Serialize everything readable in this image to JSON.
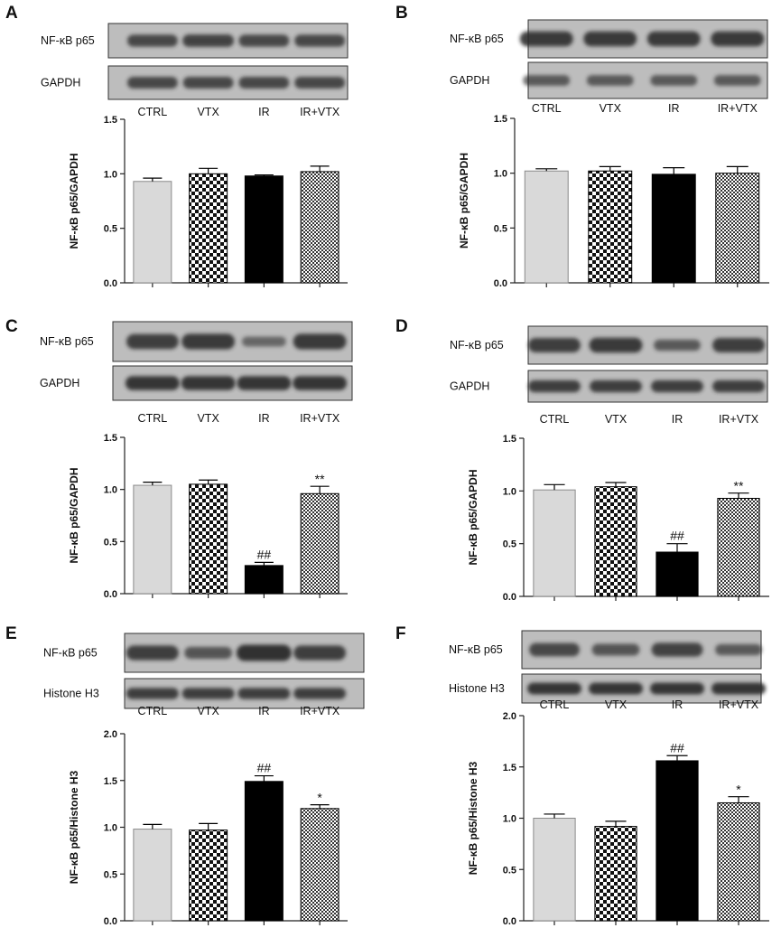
{
  "colors": {
    "ctrl_fill": "#d9d9d9",
    "ir_fill": "#000000",
    "axis": "#222222",
    "blot_bg": "#bdbdbd",
    "band": "#2a2a2a"
  },
  "patterns": [
    "solid-light-gray",
    "checkerboard",
    "solid-black",
    "fine-checkerboard"
  ],
  "chart_data": [
    {
      "panel": "A",
      "type": "bar",
      "blots": [
        "NF-κB p65",
        "GAPDH"
      ],
      "categories": [
        "CTRL",
        "VTX",
        "IR",
        "IR+VTX"
      ],
      "values": [
        0.93,
        1.0,
        0.98,
        1.02
      ],
      "errors": [
        0.03,
        0.05,
        0.01,
        0.05
      ],
      "annotations": [
        "",
        "",
        "",
        ""
      ],
      "ylabel": "NF-κB p65/GAPDH",
      "ylim": [
        0,
        1.5
      ],
      "yticks": [
        "0.0",
        "0.5",
        "1.0",
        "1.5"
      ],
      "ytick_values": [
        0,
        0.5,
        1.0,
        1.5
      ],
      "band_intensity": [
        [
          0.75,
          0.8,
          0.75,
          0.75
        ],
        [
          0.75,
          0.75,
          0.75,
          0.75
        ]
      ]
    },
    {
      "panel": "B",
      "type": "bar",
      "blots": [
        "NF-κB p65",
        "GAPDH"
      ],
      "categories": [
        "CTRL",
        "VTX",
        "IR",
        "IR+VTX"
      ],
      "values": [
        1.02,
        1.02,
        0.99,
        1.0
      ],
      "errors": [
        0.02,
        0.04,
        0.06,
        0.06
      ],
      "annotations": [
        "",
        "",
        "",
        ""
      ],
      "ylabel": "NF-κB p65/GAPDH",
      "ylim": [
        0,
        1.5
      ],
      "yticks": [
        "0.0",
        "0.5",
        "1.0",
        "1.5"
      ],
      "ytick_values": [
        0,
        0.5,
        1.0,
        1.5
      ],
      "band_intensity": [
        [
          0.9,
          0.9,
          0.9,
          0.9
        ],
        [
          0.55,
          0.55,
          0.55,
          0.55
        ]
      ]
    },
    {
      "panel": "C",
      "type": "bar",
      "blots": [
        "NF-κB p65",
        "GAPDH"
      ],
      "categories": [
        "CTRL",
        "VTX",
        "IR",
        "IR+VTX"
      ],
      "values": [
        1.04,
        1.05,
        0.27,
        0.96
      ],
      "errors": [
        0.03,
        0.04,
        0.03,
        0.07
      ],
      "annotations": [
        "",
        "",
        "##",
        "**"
      ],
      "ylabel": "NF-κB p65/GAPDH",
      "ylim": [
        0,
        1.5
      ],
      "yticks": [
        "0.0",
        "0.5",
        "1.0",
        "1.5"
      ],
      "ytick_values": [
        0,
        0.5,
        1.0,
        1.5
      ],
      "band_intensity": [
        [
          0.85,
          0.9,
          0.4,
          0.9
        ],
        [
          0.95,
          0.95,
          0.95,
          0.95
        ]
      ]
    },
    {
      "panel": "D",
      "type": "bar",
      "blots": [
        "NF-κB p65",
        "GAPDH"
      ],
      "categories": [
        "CTRL",
        "VTX",
        "IR",
        "IR+VTX"
      ],
      "values": [
        1.01,
        1.04,
        0.42,
        0.93
      ],
      "errors": [
        0.05,
        0.04,
        0.08,
        0.05
      ],
      "annotations": [
        "",
        "",
        "##",
        "**"
      ],
      "ylabel": "NF-κB p65/GAPDH",
      "ylim": [
        0,
        1.5
      ],
      "yticks": [
        "0.0",
        "0.5",
        "1.0",
        "1.5"
      ],
      "ytick_values": [
        0,
        0.5,
        1.0,
        1.5
      ],
      "band_intensity": [
        [
          0.85,
          0.9,
          0.55,
          0.85
        ],
        [
          0.85,
          0.85,
          0.85,
          0.85
        ]
      ]
    },
    {
      "panel": "E",
      "type": "bar",
      "blots": [
        "NF-κB p65",
        "Histone H3"
      ],
      "categories": [
        "CTRL",
        "VTX",
        "IR",
        "IR+VTX"
      ],
      "values": [
        0.98,
        0.97,
        1.49,
        1.2
      ],
      "errors": [
        0.05,
        0.07,
        0.06,
        0.04
      ],
      "annotations": [
        "",
        "",
        "##",
        "*"
      ],
      "ylabel": "NF-κB p65/Histone H3",
      "ylim": [
        0,
        2.0
      ],
      "yticks": [
        "0.0",
        "0.5",
        "1.0",
        "1.5",
        "2.0"
      ],
      "ytick_values": [
        0,
        0.5,
        1.0,
        1.5,
        2.0
      ],
      "band_intensity": [
        [
          0.85,
          0.6,
          1.0,
          0.85
        ],
        [
          0.85,
          0.85,
          0.85,
          0.85
        ]
      ]
    },
    {
      "panel": "F",
      "type": "bar",
      "blots": [
        "NF-κB p65",
        "Histone H3"
      ],
      "categories": [
        "CTRL",
        "VTX",
        "IR",
        "IR+VTX"
      ],
      "values": [
        1.0,
        0.92,
        1.56,
        1.15
      ],
      "errors": [
        0.04,
        0.05,
        0.05,
        0.06
      ],
      "annotations": [
        "",
        "",
        "##",
        "*"
      ],
      "ylabel": "NF-κB p65/Histone H3",
      "ylim": [
        0,
        2.0
      ],
      "yticks": [
        "0.0",
        "0.5",
        "1.0",
        "1.5",
        "2.0"
      ],
      "ytick_values": [
        0,
        0.5,
        1.0,
        1.5,
        2.0
      ],
      "band_intensity": [
        [
          0.75,
          0.6,
          0.8,
          0.55
        ],
        [
          0.95,
          0.95,
          0.95,
          0.95
        ]
      ]
    }
  ]
}
